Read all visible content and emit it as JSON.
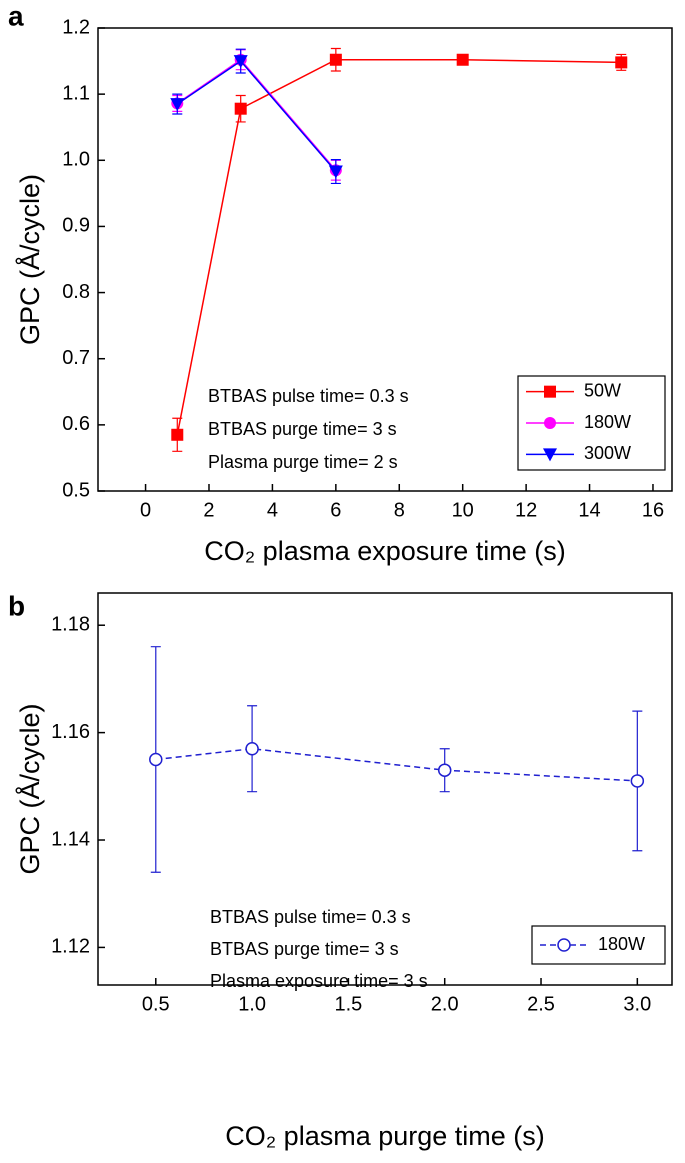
{
  "chart_data": [
    {
      "type": "line",
      "panel_label": "a",
      "y_label": "GPC (Å/cycle)",
      "x_label": "CO₂ plasma exposure time (s)",
      "xlim": [
        -1.5,
        16.6
      ],
      "ylim": [
        0.5,
        1.2
      ],
      "xticks": [
        0,
        2,
        4,
        6,
        8,
        10,
        12,
        14,
        16
      ],
      "yticks": [
        0.5,
        0.6,
        0.7,
        0.8,
        0.9,
        {
          "value": 1,
          "label": "1.0"
        },
        1.1,
        1.2
      ],
      "annotations": [
        "BTBAS pulse time= 0.3 s",
        "BTBAS purge time= 3 s",
        "Plasma purge time= 2 s"
      ],
      "legend": "lower right",
      "series": [
        {
          "name": "50W",
          "color": "#ff0000",
          "marker": "square",
          "line_style": "solid",
          "x": [
            1,
            3,
            6,
            10,
            15
          ],
          "values": [
            0.585,
            1.078,
            1.152,
            1.152,
            1.148
          ],
          "errors": [
            0.025,
            0.02,
            0.017,
            0.005,
            0.012
          ]
        },
        {
          "name": "180W",
          "color": "#ff00ff",
          "marker": "circle",
          "line_style": "solid",
          "x": [
            1,
            3,
            6
          ],
          "values": [
            1.086,
            1.152,
            0.985
          ],
          "errors": [
            0.012,
            0.015,
            0.015
          ]
        },
        {
          "name": "300W",
          "color": "#0000ff",
          "marker": "triangle-down",
          "line_style": "solid",
          "x": [
            1,
            3,
            6
          ],
          "values": [
            1.085,
            1.15,
            0.983
          ],
          "errors": [
            0.015,
            0.018,
            0.018
          ]
        }
      ]
    },
    {
      "type": "line",
      "panel_label": "b",
      "y_label": "GPC (Å/cycle)",
      "x_label": "CO₂ plasma purge time (s)",
      "xlim": [
        0.2,
        3.18
      ],
      "ylim": [
        1.113,
        1.186
      ],
      "xticks": [
        0.5,
        {
          "value": 1,
          "label": "1.0"
        },
        1.5,
        {
          "value": 2,
          "label": "2.0"
        },
        2.5,
        {
          "value": 3,
          "label": "3.0"
        }
      ],
      "yticks": [
        1.12,
        1.14,
        1.16,
        1.18
      ],
      "annotations": [
        "BTBAS pulse time= 0.3 s",
        "BTBAS purge time= 3 s",
        "Plasma exposure time= 3 s"
      ],
      "legend": "lower right",
      "series": [
        {
          "name": "180W",
          "color": "#2020d0",
          "marker": "open-circle",
          "line_style": "dashed",
          "x": [
            0.5,
            1,
            2,
            3
          ],
          "values": [
            1.155,
            1.157,
            1.153,
            1.151
          ],
          "errors": [
            0.021,
            0.008,
            0.004,
            0.013
          ]
        }
      ]
    }
  ]
}
